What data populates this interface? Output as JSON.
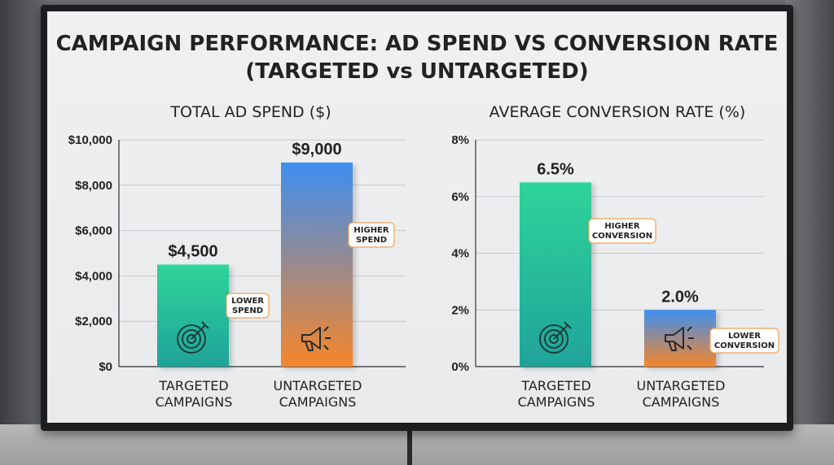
{
  "title_line1": "CAMPAIGN PERFORMANCE: AD SPEND VS CONVERSION RATE",
  "title_line2": "(TARGETED vs UNTARGETED)",
  "colors": {
    "targeted_top": "#2fd49a",
    "targeted_bottom": "#1fa39a",
    "untargeted_top": "#3d8ff0",
    "untargeted_bottom": "#f5862a"
  },
  "chart_data": [
    {
      "type": "bar",
      "title": "TOTAL AD SPEND ($)",
      "categories": [
        [
          "TARGETED",
          "CAMPAIGNS"
        ],
        [
          "UNTARGETED",
          "CAMPAIGNS"
        ]
      ],
      "values": [
        4500,
        9000
      ],
      "value_labels": [
        "$4,500",
        "$9,000"
      ],
      "annotations": [
        [
          "LOWER",
          "SPEND"
        ],
        [
          "HIGHER",
          "SPEND"
        ]
      ],
      "icons": [
        "target-icon",
        "megaphone-icon"
      ],
      "ylim": [
        0,
        10000
      ],
      "yticks": [
        0,
        2000,
        4000,
        6000,
        8000,
        10000
      ],
      "ytick_labels": [
        "$0",
        "$2,000",
        "$4,000",
        "$6,000",
        "$8,000",
        "$10,000"
      ],
      "grid": true
    },
    {
      "type": "bar",
      "title": "AVERAGE CONVERSION RATE (%)",
      "categories": [
        [
          "TARGETED",
          "CAMPAIGNS"
        ],
        [
          "UNTARGETED",
          "CAMPAIGNS"
        ]
      ],
      "values": [
        6.5,
        2.0
      ],
      "value_labels": [
        "6.5%",
        "2.0%"
      ],
      "annotations": [
        [
          "HIGHER",
          "CONVERSION"
        ],
        [
          "LOWER",
          "CONVERSION"
        ]
      ],
      "icons": [
        "target-icon",
        "megaphone-icon"
      ],
      "ylim": [
        0,
        8
      ],
      "yticks": [
        0,
        2,
        4,
        6,
        8
      ],
      "ytick_labels": [
        "0%",
        "2%",
        "4%",
        "6%",
        "8%"
      ],
      "grid": true
    }
  ]
}
